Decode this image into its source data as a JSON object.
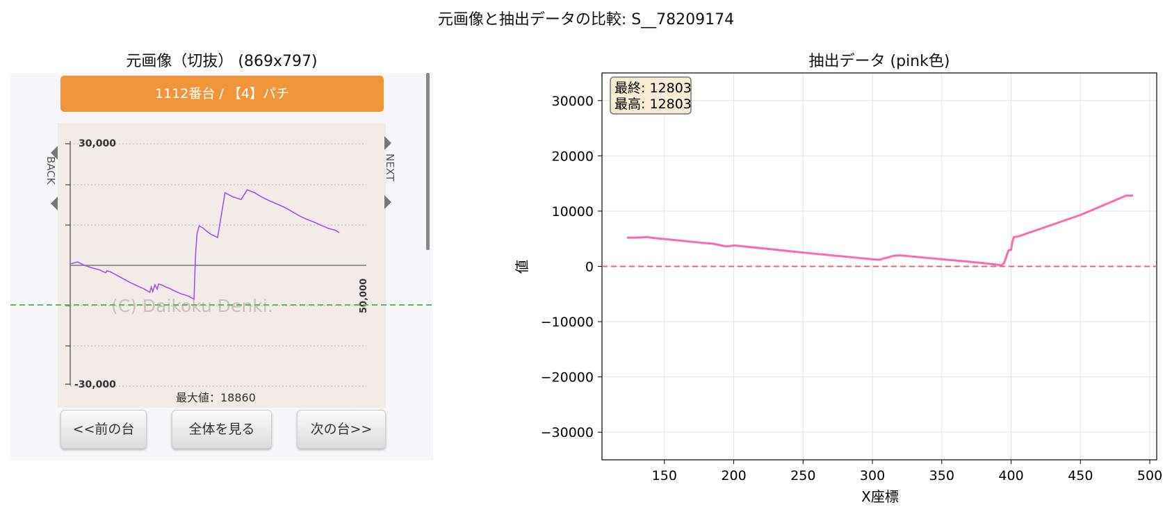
{
  "suptitle": "元画像と抽出データの比較: S__78209174",
  "left_panel": {
    "title": "元画像（切抜） (869x797)",
    "header_bar": "1112番台 / 【4】パチ",
    "y_top_label": "30,000",
    "y_bottom_label": "-30,000",
    "right_label": "50,000",
    "back_label": "BACK",
    "next_label": "NEXT",
    "watermark": "(C) Daikoku Denki.",
    "max_label": "最大値：18860",
    "buttons": [
      "<<前の台",
      "全体を見る",
      "次の台>>"
    ]
  },
  "right_panel": {
    "title": "抽出データ (pink色)",
    "info_box": [
      "最終: 12803",
      "最高: 12803"
    ]
  },
  "colors": {
    "line_pink": "#ff69b4",
    "zero_line": "#e8676b",
    "orange": "#f0953a",
    "purple": "#a64ff0",
    "green_dash": "#5cb85c"
  },
  "chart_data": [
    {
      "type": "line",
      "title": "元画像（切抜） (869x797)",
      "ylim": [
        -30000,
        30000
      ],
      "x": [
        0,
        10,
        20,
        30,
        40,
        48,
        50,
        55,
        60,
        70,
        80,
        90,
        100,
        108,
        110,
        112,
        115,
        118,
        120,
        125,
        130,
        135,
        140,
        150,
        160,
        168,
        170,
        172,
        175,
        180,
        185,
        190,
        200,
        210,
        220,
        232,
        240,
        250,
        260,
        270,
        280,
        290,
        300,
        310,
        320,
        330,
        340,
        350,
        360,
        365
      ],
      "series": [
        {
          "values": [
            0,
            500,
            -400,
            -1000,
            -1500,
            -2200,
            -1700,
            -2000,
            -2500,
            -3500,
            -4500,
            -5400,
            -6200,
            -7100,
            -5800,
            -6900,
            -5200,
            -6300,
            -5000,
            -5300,
            -5800,
            -6100,
            -6600,
            -7400,
            -8000,
            -8800,
            2000,
            7500,
            9500,
            9000,
            8200,
            7500,
            6600,
            17800,
            16800,
            16100,
            18500,
            17800,
            16700,
            15800,
            15000,
            14200,
            13200,
            12100,
            11200,
            10500,
            9700,
            8900,
            8400,
            7800
          ]
        }
      ]
    },
    {
      "type": "line",
      "title": "抽出データ (pink色)",
      "xlabel": "X座標",
      "ylabel": "値",
      "xlim": [
        105,
        505
      ],
      "ylim": [
        -35000,
        35000
      ],
      "xticks": [
        150,
        200,
        250,
        300,
        350,
        400,
        450,
        500
      ],
      "yticks": [
        30000,
        20000,
        10000,
        0,
        -10000,
        -20000,
        -30000
      ],
      "grid": true,
      "reference_line": 0,
      "x": [
        123,
        130,
        138,
        140,
        160,
        180,
        185,
        195,
        200,
        250,
        300,
        305,
        315,
        320,
        350,
        380,
        393,
        395,
        398,
        399,
        400,
        401,
        402,
        405,
        450,
        483,
        488
      ],
      "series": [
        {
          "values": [
            5200,
            5200,
            5300,
            5200,
            4700,
            4200,
            4100,
            3600,
            3800,
            2500,
            1300,
            1200,
            1900,
            2000,
            1300,
            600,
            200,
            600,
            2800,
            3000,
            3000,
            4500,
            5300,
            5400,
            9300,
            12803,
            12803
          ]
        }
      ]
    }
  ]
}
